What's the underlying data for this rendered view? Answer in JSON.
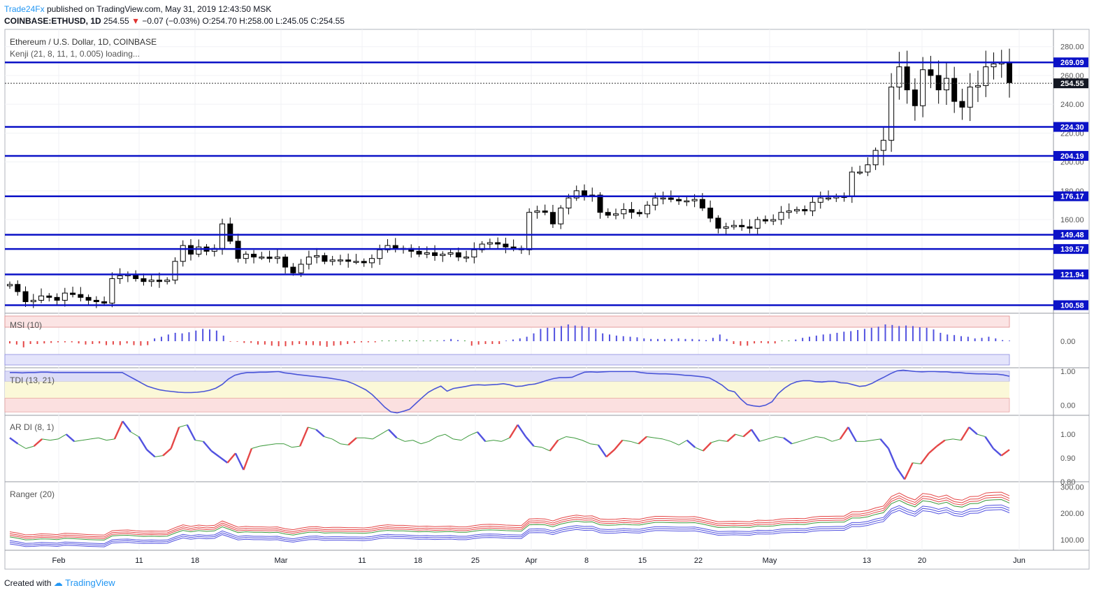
{
  "header": {
    "author": "Trade24Fx",
    "published_text": "published on TradingView.com, May 31, 2019 12:43:50 MSK",
    "symbol": "COINBASE:ETHUSD, 1D",
    "last": "254.55",
    "change_arrow": "▼",
    "change": "−0.07 (−0.03%)",
    "open": "O:254.70",
    "high": "H:258.00",
    "low": "L:245.05",
    "close": "C:254.55"
  },
  "chart_data": [
    {
      "type": "candlestick",
      "title": "Ethereum / U.S. Dollar, 1D, COINBASE",
      "subtitle": "Kenji (21, 8, 11, 1, 0.005) loading...",
      "y_ticks": [
        "280.00",
        "260.00",
        "240.00",
        "220.00",
        "200.00",
        "180.00",
        "160.00"
      ],
      "ylim": [
        95,
        292
      ],
      "current_price": "254.55",
      "horizontal_levels": [
        "269.09",
        "224.30",
        "204.19",
        "176.17",
        "149.48",
        "139.57",
        "121.94",
        "100.58"
      ],
      "closes": [
        115,
        110,
        103,
        104,
        107,
        106,
        104,
        109,
        108,
        106,
        104,
        103,
        102,
        119,
        121,
        122,
        119,
        117,
        118,
        117,
        118,
        131,
        142,
        136,
        141,
        138,
        140,
        157,
        145,
        133,
        136,
        134,
        134,
        133,
        134,
        127,
        123,
        129,
        134,
        135,
        131,
        132,
        132,
        131,
        131,
        130,
        133,
        139,
        142,
        140,
        140,
        138,
        136,
        137,
        135,
        136,
        137,
        134,
        134,
        139,
        143,
        144,
        143,
        141,
        140,
        139,
        165,
        166,
        165,
        157,
        168,
        175,
        180,
        176,
        177,
        165,
        163,
        164,
        167,
        165,
        164,
        170,
        175,
        175,
        174,
        173,
        173,
        174,
        168,
        161,
        154,
        155,
        156,
        155,
        154,
        160,
        159,
        160,
        165,
        166,
        167,
        166,
        172,
        175,
        175,
        176,
        176,
        193,
        193,
        198,
        208,
        215,
        252,
        266,
        250,
        239,
        264,
        260,
        250,
        258,
        242,
        238,
        252,
        253,
        266,
        268,
        269,
        255
      ]
    },
    {
      "type": "bar",
      "title": "MSI (10)",
      "y_ticks": [
        "0.00"
      ],
      "values": [
        -0.04,
        -0.06,
        -0.11,
        -0.05,
        -0.05,
        -0.04,
        -0.03,
        -0.02,
        -0.02,
        -0.02,
        -0.04,
        -0.06,
        -0.05,
        -0.04,
        -0.07,
        -0.06,
        -0.07,
        -0.04,
        -0.07,
        -0.08,
        -0.07,
        0.05,
        0.08,
        0.12,
        0.15,
        0.14,
        0.16,
        0.19,
        0.22,
        0.21,
        0.19,
        0.1,
        -0.01,
        -0.01,
        -0.03,
        -0.03,
        -0.06,
        -0.06,
        -0.08,
        -0.09,
        -0.09,
        -0.07,
        -0.05,
        -0.07,
        -0.07,
        -0.08,
        -0.1,
        -0.08,
        -0.07,
        -0.05,
        -0.03,
        -0.02,
        -0.02,
        -0.02,
        0.0,
        0.0,
        0.0,
        0.0,
        0.0,
        0.0,
        0.0,
        0.0,
        0.0,
        0.02,
        0.04,
        0.02,
        0.0,
        -0.08,
        -0.06,
        -0.05,
        -0.05,
        -0.05,
        0.01,
        0.03,
        0.05,
        0.08,
        0.14,
        0.22,
        0.24,
        0.24,
        0.27,
        0.3,
        0.28,
        0.27,
        0.25,
        0.22,
        0.14,
        0.12,
        0.1,
        0.09,
        0.08,
        0.07,
        0.05,
        0.04,
        0.04,
        0.04,
        0.04,
        0.05,
        0.04,
        0.04,
        0.03,
        0.02,
        0.06,
        0.12,
        0.04,
        -0.05,
        -0.08,
        -0.08,
        -0.04,
        -0.03,
        -0.04,
        -0.04,
        0.0,
        0.0,
        0.03,
        0.06,
        0.08,
        0.1,
        0.12,
        0.13,
        0.15,
        0.17,
        0.18,
        0.2,
        0.22,
        0.24,
        0.26,
        0.3,
        0.29,
        0.27,
        0.28,
        0.27,
        0.25,
        0.24,
        0.21,
        0.15,
        0.12,
        0.11,
        0.09,
        0.08,
        0.05,
        0.06,
        0.08,
        0.05,
        0.02,
        0.01
      ],
      "band_top": 0.4,
      "band_bottom": -0.4
    },
    {
      "type": "line",
      "title": "TDI (13, 21)",
      "y_ticks": [
        "1.00",
        "0.00"
      ],
      "ylim": [
        -0.3,
        1.1
      ],
      "values": [
        0.96,
        0.96,
        0.95,
        0.96,
        0.96,
        0.97,
        0.97,
        0.96,
        0.96,
        0.96,
        0.96,
        0.96,
        0.96,
        0.96,
        0.96,
        0.96,
        0.96,
        0.96,
        0.96,
        0.86,
        0.76,
        0.66,
        0.56,
        0.5,
        0.45,
        0.42,
        0.4,
        0.38,
        0.37,
        0.37,
        0.38,
        0.4,
        0.44,
        0.5,
        0.61,
        0.77,
        0.88,
        0.93,
        0.96,
        0.96,
        0.97,
        0.97,
        0.98,
        0.99,
        0.95,
        0.93,
        0.9,
        0.88,
        0.86,
        0.84,
        0.82,
        0.8,
        0.77,
        0.74,
        0.7,
        0.63,
        0.54,
        0.45,
        0.31,
        0.13,
        -0.06,
        -0.2,
        -0.23,
        -0.18,
        -0.12,
        0.05,
        0.22,
        0.38,
        0.48,
        0.56,
        0.41,
        0.49,
        0.52,
        0.55,
        0.59,
        0.6,
        0.59,
        0.6,
        0.61,
        0.63,
        0.6,
        0.55,
        0.56,
        0.6,
        0.62,
        0.67,
        0.73,
        0.78,
        0.81,
        0.81,
        0.82,
        0.9,
        0.97,
        0.98,
        0.97,
        0.98,
        0.99,
        0.99,
        0.99,
        0.99,
        0.99,
        0.96,
        0.94,
        0.93,
        0.92,
        0.92,
        0.91,
        0.9,
        0.88,
        0.87,
        0.85,
        0.83,
        0.8,
        0.7,
        0.59,
        0.44,
        0.39,
        0.18,
        0.02,
        -0.02,
        -0.04,
        0.0,
        0.1,
        0.34,
        0.5,
        0.62,
        0.69,
        0.72,
        0.72,
        0.69,
        0.68,
        0.7,
        0.7,
        0.66,
        0.65,
        0.6,
        0.55,
        0.57,
        0.64,
        0.74,
        0.83,
        0.93,
        1.01,
        1.03,
        1.01,
        0.99,
        0.98,
        0.99,
        0.99,
        0.98,
        0.98,
        0.96,
        0.96,
        0.94,
        0.93,
        0.92,
        0.92,
        0.91,
        0.91,
        0.89,
        0.85
      ]
    },
    {
      "type": "line",
      "title": "AR DI (8, 1)",
      "y_ticks": [
        "1.00",
        "0.90",
        "0.80"
      ],
      "ylim": [
        0.8,
        1.08
      ],
      "values": [
        0.985,
        0.96,
        0.94,
        0.95,
        0.98,
        0.975,
        0.98,
        1.0,
        0.97,
        0.975,
        0.98,
        0.985,
        0.975,
        0.98,
        1.055,
        1.01,
        0.99,
        0.935,
        0.905,
        0.91,
        0.94,
        1.03,
        1.04,
        0.975,
        0.97,
        0.93,
        0.905,
        0.88,
        0.92,
        0.85,
        0.94,
        0.95,
        0.955,
        0.96,
        0.96,
        0.945,
        0.95,
        1.03,
        1.02,
        0.99,
        0.98,
        0.96,
        0.955,
        0.985,
        0.985,
        0.98,
        1.0,
        1.02,
        0.985,
        0.97,
        0.975,
        0.96,
        0.97,
        0.99,
        1.0,
        0.98,
        0.975,
        0.995,
        1.01,
        0.97,
        0.975,
        0.97,
        0.985,
        1.04,
        0.99,
        0.95,
        0.945,
        0.93,
        0.975,
        0.99,
        0.985,
        0.975,
        0.96,
        0.955,
        0.905,
        0.935,
        0.975,
        0.97,
        0.96,
        0.99,
        0.985,
        0.98,
        0.97,
        0.955,
        0.975,
        0.945,
        0.93,
        0.965,
        0.975,
        0.97,
        1.0,
        0.99,
        1.02,
        0.97,
        0.98,
        0.99,
        0.985,
        0.96,
        0.97,
        0.98,
        0.99,
        0.985,
        0.97,
        0.98,
        1.03,
        0.97,
        0.97,
        0.975,
        0.98,
        0.94,
        0.86,
        0.81,
        0.88,
        0.875,
        0.92,
        0.95,
        0.975,
        0.98,
        0.975,
        1.03,
        1.0,
        0.99,
        0.94,
        0.91,
        0.935
      ]
    },
    {
      "type": "line",
      "title": "Ranger (20)",
      "y_ticks": [
        "300.00",
        "200.00",
        "100.00"
      ],
      "ylim": [
        60,
        320
      ],
      "series_note": "price envelope bands"
    }
  ],
  "x_axis": {
    "tick_labels": [
      "Feb",
      "11",
      "18",
      "Mar",
      "11",
      "18",
      "25",
      "Apr",
      "8",
      "15",
      "22",
      "May",
      "13",
      "20",
      "Jun"
    ]
  },
  "footer": {
    "created_with": "Created with",
    "brand": "TradingView"
  },
  "colors": {
    "level_line": "#0b12c7",
    "bull": "#ffffff",
    "bear": "#000000",
    "msi_pos": "#5252e0",
    "msi_neg": "#e54747",
    "msi_neutral": "#3c9a3c",
    "label_bg": "#0b12c7"
  }
}
